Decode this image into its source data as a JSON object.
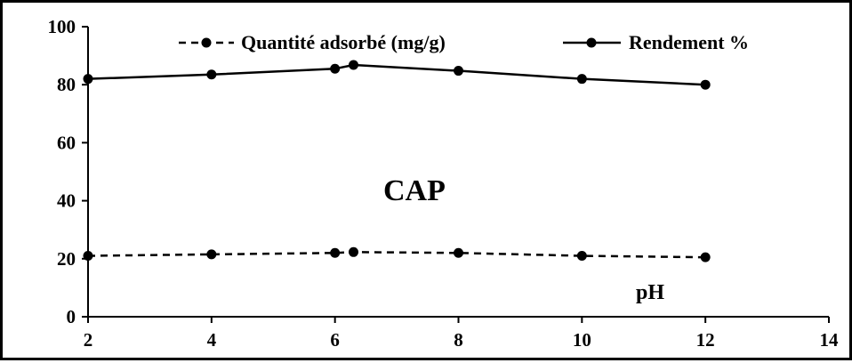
{
  "chart_data": {
    "type": "line",
    "title": "",
    "xlabel": "pH",
    "ylabel": "",
    "xlim": [
      2,
      14
    ],
    "ylim": [
      0,
      100
    ],
    "x_ticks": [
      2,
      4,
      6,
      8,
      10,
      12,
      14
    ],
    "y_ticks": [
      0,
      20,
      40,
      60,
      80,
      100
    ],
    "grid": false,
    "legend_position": "top",
    "annotation": "CAP",
    "series": [
      {
        "name": "Quantité adsorbé (mg/g)",
        "style": "dashed",
        "color": "#000000",
        "x": [
          2,
          4,
          6,
          6.3,
          8,
          10,
          12
        ],
        "y": [
          21.0,
          21.5,
          22.0,
          22.3,
          22.0,
          21.0,
          20.5
        ]
      },
      {
        "name": "Rendement %",
        "style": "solid",
        "color": "#000000",
        "x": [
          2,
          4,
          6,
          6.3,
          8,
          10,
          12
        ],
        "y": [
          82.0,
          83.5,
          85.5,
          86.8,
          84.8,
          82.0,
          80.0
        ]
      }
    ]
  }
}
